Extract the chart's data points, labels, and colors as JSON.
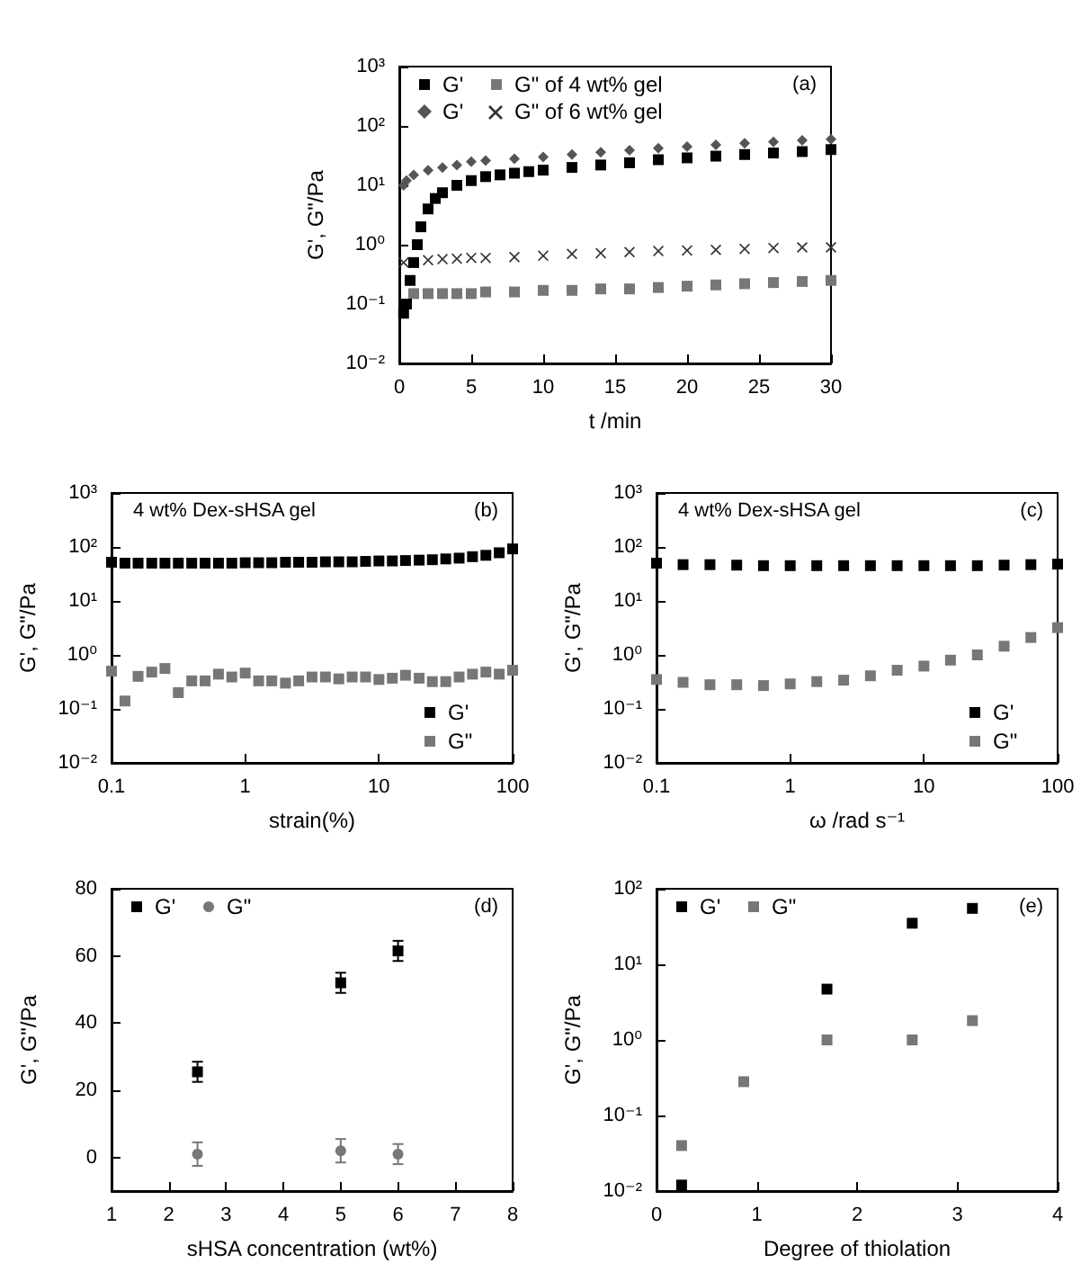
{
  "chart_data": [
    {
      "type": "scatter",
      "xlabel": "t /min",
      "ylabel": "G', G\"/Pa",
      "annotations": [
        "(a)"
      ],
      "log": "y",
      "legend": "top left",
      "xlim": [
        0,
        30
      ],
      "xticks": [
        0,
        5,
        10,
        15,
        20,
        25,
        30
      ],
      "ylim": [
        0.01,
        1000
      ],
      "yticks": [
        {
          "value": 0.01,
          "label": "10⁻²"
        },
        {
          "value": 0.1,
          "label": "10⁻¹"
        },
        {
          "value": 1,
          "label": "10⁰"
        },
        {
          "value": 10,
          "label": "10¹"
        },
        {
          "value": 100,
          "label": "10²"
        },
        {
          "value": 1000,
          "label": "10³"
        }
      ],
      "series": [
        {
          "name": "G'",
          "color": "#000000",
          "marker": "square",
          "x": [
            0.3,
            0.5,
            0.75,
            1,
            1.25,
            1.5,
            2,
            2.5,
            3,
            4,
            5,
            6,
            7,
            8,
            9,
            10,
            12,
            14,
            16,
            18,
            20,
            22,
            24,
            26,
            28,
            30
          ],
          "values": [
            0.07,
            0.1,
            0.25,
            0.5,
            1,
            2,
            4,
            6,
            7.5,
            10,
            12,
            14,
            15,
            16,
            17,
            18,
            20,
            22,
            24,
            27,
            29,
            31,
            33,
            35,
            37,
            40
          ]
        },
        {
          "name": "G\" of 4 wt% gel",
          "color": "#777777",
          "marker": "square",
          "x": [
            1,
            2,
            3,
            4,
            5,
            6,
            8,
            10,
            12,
            14,
            16,
            18,
            20,
            22,
            24,
            26,
            28,
            30
          ],
          "values": [
            0.15,
            0.15,
            0.15,
            0.15,
            0.15,
            0.16,
            0.16,
            0.17,
            0.17,
            0.18,
            0.18,
            0.19,
            0.2,
            0.21,
            0.22,
            0.23,
            0.24,
            0.25
          ]
        },
        {
          "name": "G'",
          "color": "#555555",
          "marker": "diamond",
          "x": [
            0.3,
            0.5,
            1,
            2,
            3,
            4,
            5,
            6,
            8,
            10,
            12,
            14,
            16,
            18,
            20,
            22,
            24,
            26,
            28,
            30
          ],
          "values": [
            10,
            12,
            15,
            18,
            20,
            22,
            25,
            26,
            28,
            30,
            33,
            36,
            39,
            42,
            45,
            48,
            51,
            54,
            57,
            60
          ]
        },
        {
          "name": "G\" of 6 wt% gel",
          "color": "#333333",
          "marker": "cross",
          "x": [
            0.3,
            2,
            3,
            4,
            5,
            6,
            8,
            10,
            12,
            14,
            16,
            18,
            20,
            22,
            24,
            26,
            28,
            30
          ],
          "values": [
            0.5,
            0.55,
            0.57,
            0.58,
            0.6,
            0.6,
            0.62,
            0.65,
            0.7,
            0.72,
            0.75,
            0.78,
            0.8,
            0.82,
            0.85,
            0.88,
            0.9,
            0.9
          ]
        }
      ]
    },
    {
      "type": "scatter",
      "xlabel": "strain(%)",
      "ylabel": "G', G\"/Pa",
      "annotations": [
        "4 wt% Dex-sHSA gel",
        "(b)"
      ],
      "log": "xy",
      "legend": "bottom right",
      "xlim": [
        0.1,
        100
      ],
      "xticks": [
        0.1,
        1,
        10,
        100
      ],
      "ylim": [
        0.01,
        1000
      ],
      "yticks": [
        {
          "value": 0.01,
          "label": "10⁻²"
        },
        {
          "value": 0.1,
          "label": "10⁻¹"
        },
        {
          "value": 1,
          "label": "10⁰"
        },
        {
          "value": 10,
          "label": "10¹"
        },
        {
          "value": 100,
          "label": "10²"
        },
        {
          "value": 1000,
          "label": "10³"
        }
      ],
      "x": [
        0.1,
        0.126,
        0.158,
        0.2,
        0.251,
        0.316,
        0.398,
        0.501,
        0.631,
        0.794,
        1,
        1.26,
        1.58,
        2,
        2.51,
        3.16,
        3.98,
        5.01,
        6.31,
        7.94,
        10,
        12.6,
        15.8,
        20,
        25.1,
        31.6,
        39.8,
        50.1,
        63.1,
        79.4,
        100
      ],
      "series": [
        {
          "name": "G'",
          "color": "#000000",
          "marker": "square",
          "values": [
            52,
            50,
            50,
            50,
            50,
            50,
            50,
            50,
            50,
            50,
            51,
            51,
            51,
            52,
            52,
            52,
            53,
            53,
            53,
            54,
            55,
            55,
            56,
            57,
            58,
            60,
            62,
            66,
            70,
            78,
            92
          ]
        },
        {
          "name": "G\"",
          "color": "#777777",
          "marker": "square",
          "values": [
            0.5,
            0.14,
            0.4,
            0.48,
            0.56,
            0.2,
            0.33,
            0.33,
            0.44,
            0.39,
            0.46,
            0.33,
            0.33,
            0.3,
            0.33,
            0.39,
            0.39,
            0.36,
            0.39,
            0.39,
            0.35,
            0.37,
            0.42,
            0.37,
            0.32,
            0.32,
            0.39,
            0.44,
            0.48,
            0.44,
            0.52
          ]
        }
      ]
    },
    {
      "type": "scatter",
      "xlabel": "ω /rad s⁻¹",
      "ylabel": "G', G\"/Pa",
      "annotations": [
        "4 wt% Dex-sHSA gel",
        "(c)"
      ],
      "log": "xy",
      "legend": "bottom right",
      "xlim": [
        0.1,
        100
      ],
      "xticks": [
        0.1,
        1,
        10,
        100
      ],
      "ylim": [
        0.01,
        1000
      ],
      "yticks": [
        {
          "value": 0.01,
          "label": "10⁻²"
        },
        {
          "value": 0.1,
          "label": "10⁻¹"
        },
        {
          "value": 1,
          "label": "10⁰"
        },
        {
          "value": 10,
          "label": "10¹"
        },
        {
          "value": 100,
          "label": "10²"
        },
        {
          "value": 1000,
          "label": "10³"
        }
      ],
      "x": [
        0.1,
        0.158,
        0.251,
        0.398,
        0.631,
        1,
        1.58,
        2.51,
        3.98,
        6.31,
        10,
        15.8,
        25.1,
        39.8,
        63.1,
        100
      ],
      "series": [
        {
          "name": "G'",
          "color": "#000000",
          "marker": "square",
          "values": [
            50,
            47,
            47,
            46,
            45,
            45,
            45,
            45,
            45,
            45,
            45,
            45,
            45,
            46,
            47,
            48
          ]
        },
        {
          "name": "G\"",
          "color": "#777777",
          "marker": "square",
          "values": [
            0.35,
            0.31,
            0.28,
            0.28,
            0.27,
            0.29,
            0.32,
            0.34,
            0.41,
            0.52,
            0.62,
            0.8,
            1.0,
            1.45,
            2.1,
            3.2
          ]
        }
      ]
    },
    {
      "type": "scatter",
      "xlabel": "sHSA concentration (wt%)",
      "ylabel": "G', G\"/Pa",
      "annotations": [
        "(d)"
      ],
      "legend": "top left",
      "xlim": [
        1,
        8
      ],
      "xticks": [
        1,
        2,
        3,
        4,
        5,
        6,
        7,
        8
      ],
      "ylim": [
        -10,
        80
      ],
      "yticks": [
        0,
        20,
        40,
        60,
        80
      ],
      "x": [
        2.5,
        5,
        6
      ],
      "series": [
        {
          "name": "G'",
          "color": "#000000",
          "marker": "square",
          "values": [
            25.5,
            52,
            61.5
          ],
          "errors": [
            3,
            3,
            3
          ]
        },
        {
          "name": "G\"",
          "color": "#777777",
          "marker": "circle",
          "values": [
            1,
            2,
            1
          ],
          "errors": [
            3.5,
            3.5,
            3
          ]
        }
      ]
    },
    {
      "type": "scatter",
      "xlabel": "Degree of thiolation",
      "ylabel": "G', G\"/Pa",
      "annotations": [
        "(e)"
      ],
      "log": "y",
      "legend": "top left",
      "xlim": [
        0,
        4
      ],
      "xticks": [
        0,
        1,
        2,
        3,
        4
      ],
      "ylim": [
        0.01,
        100
      ],
      "yticks": [
        {
          "value": 0.01,
          "label": "10⁻²"
        },
        {
          "value": 0.1,
          "label": "10⁻¹"
        },
        {
          "value": 1,
          "label": "10⁰"
        },
        {
          "value": 10,
          "label": "10¹"
        },
        {
          "value": 100,
          "label": "10²"
        }
      ],
      "series": [
        {
          "name": "G'",
          "color": "#000000",
          "marker": "square",
          "x": [
            0.25,
            1.7,
            2.55,
            3.15
          ],
          "values": [
            0.012,
            4.7,
            35,
            55
          ]
        },
        {
          "name": "G\"",
          "color": "#777777",
          "marker": "square",
          "x": [
            0.25,
            0.87,
            1.7,
            2.55,
            3.15
          ],
          "values": [
            0.04,
            0.28,
            1.0,
            1.0,
            1.8
          ]
        }
      ]
    }
  ]
}
